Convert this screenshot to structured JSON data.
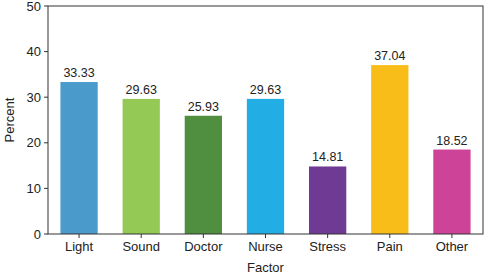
{
  "chart_data": {
    "type": "bar",
    "x_label": "Factor",
    "y_label": "Percent",
    "categories": [
      "Light",
      "Sound",
      "Doctor",
      "Nurse",
      "Stress",
      "Pain",
      "Other"
    ],
    "values": [
      33.33,
      29.63,
      25.93,
      29.63,
      14.81,
      37.04,
      18.52
    ],
    "colors": [
      "#4a9bcc",
      "#94c955",
      "#4f8f3f",
      "#23ade5",
      "#6f3a93",
      "#f9bd19",
      "#cd4397"
    ],
    "ylim": [
      0,
      50
    ],
    "yticks": [
      0,
      10,
      20,
      30,
      40,
      50
    ],
    "data_labels": true,
    "grid": false
  }
}
